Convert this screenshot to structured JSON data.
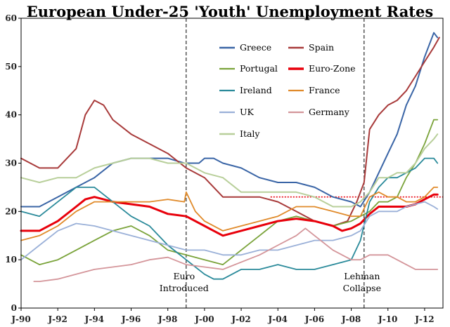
{
  "chart_data": {
    "type": "line",
    "title": "European Under-25 'Youth' Unemployment Rates",
    "xlabel": "",
    "ylabel": "",
    "xlim": [
      1990.0,
      2013.0
    ],
    "ylim": [
      0,
      60
    ],
    "y_ticks": [
      0,
      10,
      20,
      30,
      40,
      50,
      60
    ],
    "x_ticks": [
      {
        "value": 1990,
        "label": "J-90"
      },
      {
        "value": 1992,
        "label": "J-92"
      },
      {
        "value": 1994,
        "label": "J-94"
      },
      {
        "value": 1996,
        "label": "J-96"
      },
      {
        "value": 1998,
        "label": "J-98"
      },
      {
        "value": 2000,
        "label": "J-00"
      },
      {
        "value": 2002,
        "label": "J-02"
      },
      {
        "value": 2004,
        "label": "J-04"
      },
      {
        "value": 2006,
        "label": "J-06"
      },
      {
        "value": 2008,
        "label": "J-08"
      },
      {
        "value": 2010,
        "label": "J-10"
      },
      {
        "value": 2012,
        "label": "J-12"
      }
    ],
    "grid": false,
    "legend_position": "top-right",
    "reference_line": {
      "y": 23,
      "color": "#e8000b"
    },
    "annotations": [
      {
        "x": 1999.0,
        "lines": [
          "Euro",
          "Introduced"
        ]
      },
      {
        "x": 2008.7,
        "lines": [
          "Lehman",
          "Collapse"
        ]
      }
    ],
    "series": [
      {
        "name": "Greece",
        "color": "#3a65a6",
        "width": 2,
        "x": [
          1990,
          1991,
          1992,
          1993,
          1994,
          1995,
          1996,
          1997,
          1998,
          1998.9,
          1999.2,
          1999.7,
          2000,
          2000.5,
          2001,
          2002,
          2003,
          2004,
          2005,
          2006,
          2007,
          2008,
          2008.5,
          2009,
          2009.5,
          2010,
          2010.5,
          2011,
          2011.5,
          2012,
          2012.5,
          2012.7
        ],
        "y": [
          21,
          21,
          23,
          25,
          27,
          30,
          31,
          31,
          31,
          30,
          30,
          30,
          31,
          31,
          30,
          29,
          27,
          26,
          26,
          25,
          23,
          22,
          21,
          24,
          28,
          32,
          36,
          42,
          46,
          52,
          57,
          56
        ]
      },
      {
        "name": "Spain",
        "color": "#a83a3a",
        "width": 2,
        "x": [
          1990,
          1991,
          1992,
          1993,
          1993.5,
          1994,
          1994.5,
          1995,
          1996,
          1997,
          1998,
          1999,
          2000,
          2001,
          2002,
          2003,
          2004,
          2005,
          2006,
          2007,
          2007.8,
          2008.3,
          2008.7,
          2009,
          2009.5,
          2010,
          2010.5,
          2011,
          2011.5,
          2012,
          2012.5,
          2012.8
        ],
        "y": [
          31,
          29,
          29,
          33,
          40,
          43,
          42,
          39,
          36,
          34,
          32,
          29,
          27,
          23,
          23,
          23,
          22,
          20,
          18,
          17,
          18,
          22,
          26,
          37,
          40,
          42,
          43,
          45,
          48,
          51,
          54,
          56
        ]
      },
      {
        "name": "Portugal",
        "color": "#7aa33a",
        "width": 1.8,
        "x": [
          1990,
          1991,
          1992,
          1993,
          1994,
          1995,
          1996,
          1997,
          1998,
          1999,
          2000,
          2001,
          2002,
          2003,
          2004,
          2005,
          2006,
          2007,
          2008,
          2009,
          2009.5,
          2010,
          2010.5,
          2011,
          2011.5,
          2012,
          2012.5,
          2012.7
        ],
        "y": [
          11,
          9,
          10,
          12,
          14,
          16,
          17,
          15,
          12,
          11,
          10,
          9,
          12,
          15,
          18,
          19,
          18,
          17,
          18,
          20,
          22,
          22,
          23,
          27,
          30,
          34,
          39,
          39
        ]
      },
      {
        "name": "Euro-Zone",
        "color": "#e8000b",
        "width": 3,
        "x": [
          1990,
          1991,
          1992,
          1993,
          1993.5,
          1994,
          1994.5,
          1995,
          1996,
          1997,
          1998,
          1999,
          2000,
          2000.5,
          2001,
          2002,
          2003,
          2004,
          2005,
          2006,
          2007,
          2007.5,
          2008,
          2008.5,
          2009,
          2009.5,
          2010,
          2010.5,
          2011,
          2011.5,
          2012,
          2012.5,
          2012.7
        ],
        "y": [
          16,
          16,
          18,
          21,
          22.5,
          23,
          22.5,
          22,
          21.5,
          21,
          19.5,
          19,
          17,
          16,
          15,
          16,
          17,
          18,
          18.5,
          18,
          17,
          16,
          16.5,
          17.5,
          19.5,
          21,
          21,
          21,
          21,
          21.5,
          22.5,
          23.5,
          23.5
        ]
      },
      {
        "name": "Ireland",
        "color": "#2a8a9a",
        "width": 1.8,
        "x": [
          1990,
          1991,
          1992,
          1993,
          1994,
          1995,
          1996,
          1997,
          1998,
          1999,
          2000,
          2000.5,
          2001,
          2001.5,
          2002,
          2003,
          2004,
          2005,
          2006,
          2007,
          2008,
          2008.5,
          2009,
          2009.5,
          2010,
          2010.5,
          2011,
          2011.5,
          2012,
          2012.5,
          2012.7
        ],
        "y": [
          20,
          19,
          22,
          25,
          25,
          22,
          19,
          17,
          13,
          10,
          7,
          6,
          6,
          7,
          8,
          8,
          9,
          8,
          8,
          9,
          10,
          14,
          22,
          25,
          27,
          27,
          28,
          29,
          31,
          31,
          30
        ]
      },
      {
        "name": "France",
        "color": "#e08a2a",
        "width": 1.8,
        "x": [
          1990,
          1991,
          1992,
          1993,
          1994,
          1995,
          1996,
          1997,
          1998,
          1998.9,
          1999,
          1999.5,
          2000,
          2001,
          2002,
          2003,
          2004,
          2005,
          2006,
          2007,
          2008,
          2008.5,
          2009,
          2009.5,
          2010,
          2010.5,
          2011,
          2011.5,
          2012,
          2012.5,
          2012.7
        ],
        "y": [
          14,
          15,
          17,
          20,
          22,
          22,
          22,
          22,
          22.5,
          22,
          24,
          20,
          18,
          16,
          17,
          18,
          19,
          21,
          21,
          20,
          19,
          19,
          23,
          24,
          23,
          23,
          22,
          22,
          23,
          25,
          25
        ]
      },
      {
        "name": "UK",
        "color": "#9ab0d8",
        "width": 1.8,
        "x": [
          1990,
          1991,
          1992,
          1993,
          1994,
          1995,
          1996,
          1997,
          1998,
          1999,
          2000,
          2001,
          2002,
          2003,
          2004,
          2005,
          2006,
          2007,
          2008,
          2008.5,
          2009,
          2009.5,
          2010,
          2010.5,
          2011,
          2011.5,
          2012,
          2012.5,
          2012.7
        ],
        "y": [
          10,
          13,
          16,
          17.5,
          17,
          16,
          15,
          14,
          13,
          12,
          12,
          11,
          11,
          12,
          12,
          13,
          14,
          14,
          15,
          16,
          19,
          20,
          20,
          20,
          21,
          21.5,
          22,
          21,
          20.5
        ]
      },
      {
        "name": "Germany",
        "color": "#d4959a",
        "width": 1.8,
        "x": [
          1990.7,
          1991,
          1992,
          1993,
          1994,
          1995,
          1996,
          1997,
          1998,
          1999,
          2000,
          2001,
          2002,
          2003,
          2004,
          2005,
          2005.5,
          2006,
          2007,
          2008,
          2008.5,
          2009,
          2009.5,
          2010,
          2010.5,
          2011,
          2011.5,
          2012,
          2012.5,
          2012.7
        ],
        "y": [
          5.5,
          5.5,
          6,
          7,
          8,
          8.5,
          9,
          10,
          10.5,
          9,
          8.5,
          8,
          9.5,
          11,
          13,
          15,
          16.5,
          15,
          12,
          10,
          10,
          11,
          11,
          11,
          10,
          9,
          8,
          8,
          8,
          8
        ]
      },
      {
        "name": "Italy",
        "color": "#b8cf9a",
        "width": 2,
        "x": [
          1990,
          1991,
          1992,
          1993,
          1994,
          1995,
          1996,
          1997,
          1998,
          1999,
          2000,
          2001,
          2002,
          2003,
          2004,
          2005,
          2006,
          2007,
          2008,
          2008.5,
          2009,
          2009.5,
          2010,
          2010.5,
          2011,
          2011.5,
          2012,
          2012.5,
          2012.7
        ],
        "y": [
          27,
          26,
          27,
          27,
          29,
          30,
          31,
          31,
          30,
          30,
          28,
          27,
          24,
          24,
          24,
          24,
          23,
          21,
          21,
          22,
          24,
          27,
          27,
          28,
          28,
          30,
          33,
          35,
          36
        ]
      }
    ]
  }
}
